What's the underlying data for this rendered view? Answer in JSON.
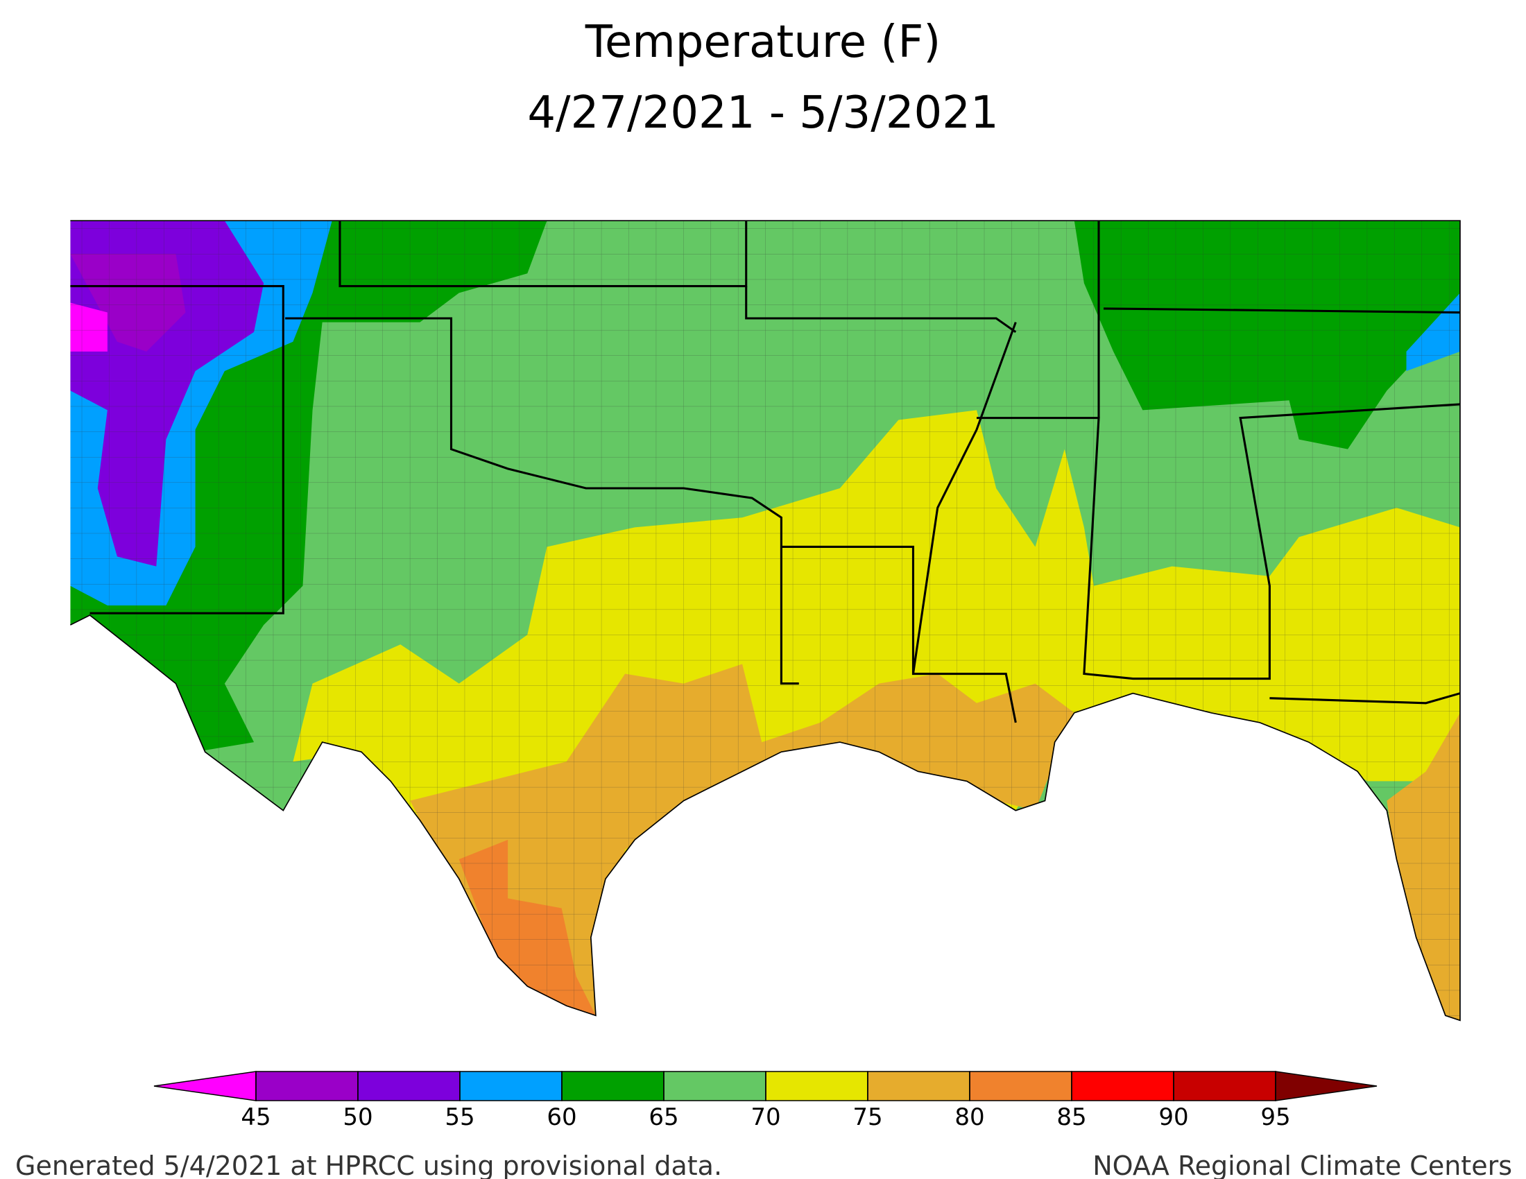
{
  "title": [
    "Temperature (F)",
    "4/27/2021 - 5/3/2021"
  ],
  "legend": {
    "ticks": [
      45,
      50,
      55,
      60,
      65,
      70,
      75,
      80,
      85,
      90,
      95
    ],
    "colors": [
      "#ff00ff",
      "#9a00c8",
      "#7d00dc",
      "#00a0ff",
      "#00a000",
      "#64c864",
      "#e6e600",
      "#e6ac2d",
      "#f0822d",
      "#ff0000",
      "#c80000",
      "#800000"
    ]
  },
  "footer": {
    "left": "Generated 5/4/2021 at HPRCC using provisional data.",
    "right": "NOAA Regional Climate Centers"
  }
}
